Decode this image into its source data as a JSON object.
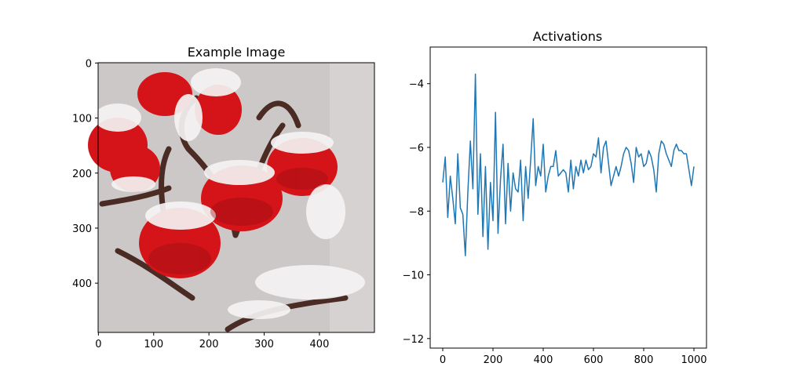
{
  "figure": {
    "background": "#ffffff"
  },
  "image_panel": {
    "title": "Example Image",
    "x_ticks": [
      0,
      100,
      200,
      300,
      400
    ],
    "y_ticks": [
      0,
      100,
      200,
      300,
      400
    ],
    "x_range": [
      0,
      499
    ],
    "y_range": [
      0,
      489
    ],
    "colors": {
      "background": "#cdc8c8",
      "berry": "#d41419",
      "berry_dark": "#8e0b10",
      "snow": "#f5f3f3",
      "stem": "#4a2c24"
    }
  },
  "chart_data": [
    {
      "type": "line",
      "title": "Activations",
      "xlabel": "",
      "ylabel": "",
      "xlim": [
        -50,
        1050
      ],
      "ylim": [
        -12.3,
        -2.85
      ],
      "x_ticks": [
        0,
        200,
        400,
        600,
        800,
        1000
      ],
      "y_ticks": [
        -12,
        -10,
        -8,
        -6,
        -4
      ],
      "grid": false,
      "series": [
        {
          "color": "#1f77b4",
          "x_step": 10,
          "values": [
            -7.1,
            -6.3,
            -8.2,
            -6.9,
            -7.6,
            -8.4,
            -6.2,
            -7.9,
            -8.1,
            -9.4,
            -7.4,
            -5.8,
            -7.3,
            -3.7,
            -8.1,
            -6.2,
            -8.8,
            -6.6,
            -9.2,
            -7.1,
            -8.3,
            -4.9,
            -8.7,
            -7.0,
            -5.9,
            -8.4,
            -6.5,
            -8.0,
            -6.8,
            -7.3,
            -7.4,
            -6.4,
            -8.3,
            -6.6,
            -7.6,
            -6.4,
            -5.1,
            -7.2,
            -6.6,
            -6.9,
            -5.9,
            -7.4,
            -6.9,
            -6.6,
            -6.6,
            -6.1,
            -6.9,
            -6.8,
            -6.7,
            -6.8,
            -7.4,
            -6.4,
            -7.3,
            -6.6,
            -6.9,
            -6.4,
            -6.8,
            -6.4,
            -6.7,
            -6.6,
            -6.2,
            -6.3,
            -5.7,
            -6.8,
            -6.0,
            -5.8,
            -6.5,
            -7.2,
            -6.9,
            -6.6,
            -6.9,
            -6.6,
            -6.2,
            -6.0,
            -6.1,
            -6.5,
            -7.1,
            -6.0,
            -6.3,
            -6.2,
            -6.6,
            -6.5,
            -6.1,
            -6.3,
            -6.7,
            -7.4,
            -6.2,
            -5.8,
            -5.9,
            -6.2,
            -6.4,
            -6.6,
            -6.1,
            -5.9,
            -6.1,
            -6.1,
            -6.2,
            -6.2,
            -6.7,
            -7.2,
            -6.6
          ]
        }
      ]
    }
  ]
}
